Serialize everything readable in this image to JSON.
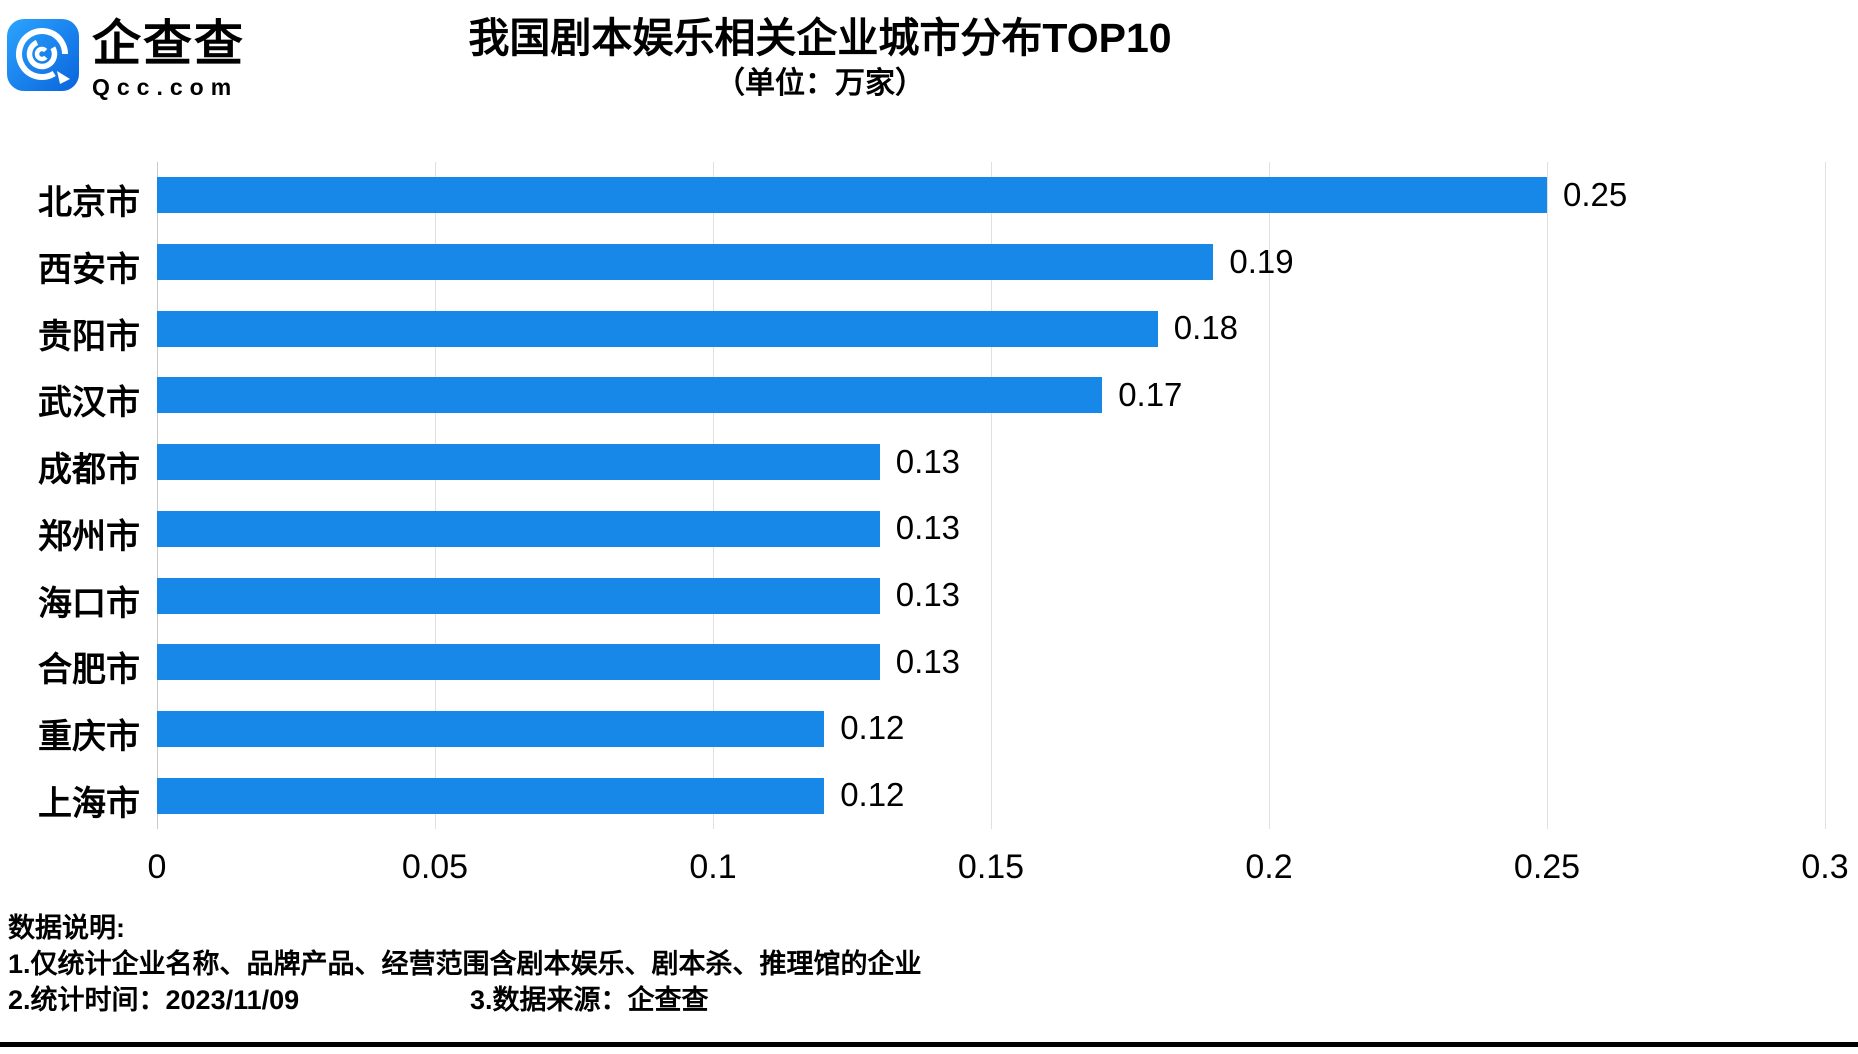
{
  "logo": {
    "name": "企查查",
    "domain": "Qcc.com",
    "icon": "qcc-spiral-icon",
    "color_top": "#2BA4FF",
    "color_bottom": "#0A64DC"
  },
  "header": {
    "title": "我国剧本娱乐相关企业城市分布TOP10",
    "subtitle": "（单位：万家）"
  },
  "chart_data": {
    "type": "bar",
    "orientation": "horizontal",
    "title": "我国剧本娱乐相关企业城市分布TOP10",
    "subtitle": "（单位：万家）",
    "categories": [
      "北京市",
      "西安市",
      "贵阳市",
      "武汉市",
      "成都市",
      "郑州市",
      "海口市",
      "合肥市",
      "重庆市",
      "上海市"
    ],
    "values": [
      0.25,
      0.19,
      0.18,
      0.17,
      0.13,
      0.13,
      0.13,
      0.13,
      0.12,
      0.12
    ],
    "value_labels": [
      "0.25",
      "0.19",
      "0.18",
      "0.17",
      "0.13",
      "0.13",
      "0.13",
      "0.13",
      "0.12",
      "0.12"
    ],
    "xlabel": "",
    "ylabel": "",
    "xlim": [
      0,
      0.3
    ],
    "xticks": [
      0,
      0.05,
      0.1,
      0.15,
      0.2,
      0.25,
      0.3
    ],
    "xtick_labels": [
      "0",
      "0.05",
      "0.1",
      "0.15",
      "0.2",
      "0.25",
      "0.3"
    ],
    "grid": true,
    "legend": false,
    "bar_color": "#1787E8",
    "grid_color": "#E0E0E0"
  },
  "notes": {
    "heading": "数据说明:",
    "line1": "1.仅统计企业名称、品牌产品、经营范围含剧本娱乐、剧本杀、推理馆的企业",
    "line2a": "2.统计时间：2023/11/09",
    "line2b": "3.数据来源：企查查"
  }
}
